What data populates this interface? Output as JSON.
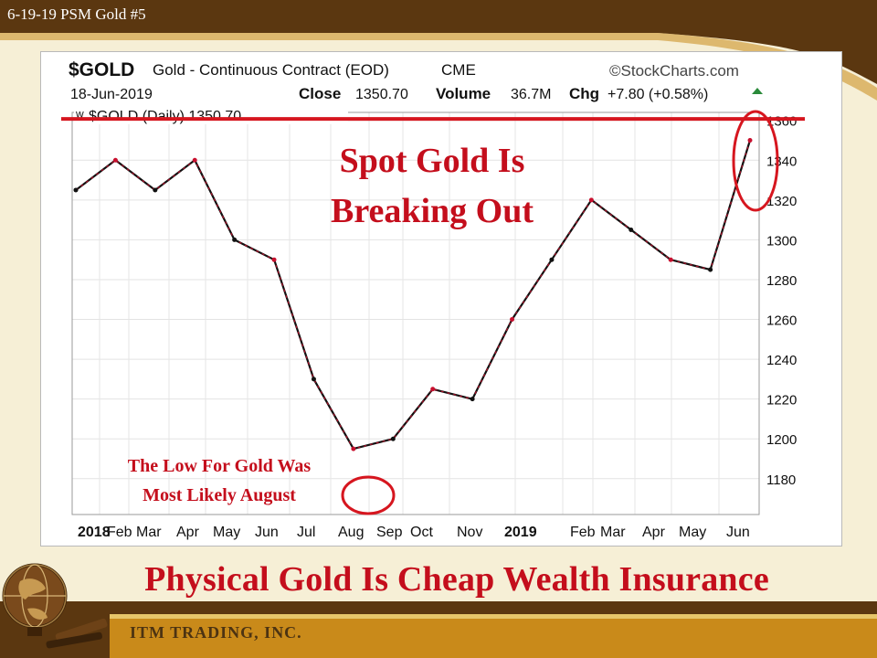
{
  "slide": {
    "tag": "6-19-19 PSM Gold #5",
    "headline": "Physical Gold Is Cheap Wealth Insurance",
    "company": "ITM TRADING, INC."
  },
  "colors": {
    "accent_red": "#d6161f",
    "candle_black": "#111111",
    "candle_red": "#c8102e",
    "banner_brown": "#5b3710",
    "banner_gold": "#c98a1a"
  },
  "icons": {
    "logo": "globe-compass-logo"
  },
  "chart_header": {
    "symbol": "$GOLD",
    "description": "Gold - Continuous Contract (EOD)",
    "exchange": "CME",
    "brand": "©StockCharts.com",
    "date": "18-Jun-2019",
    "close_label": "Close",
    "close_value": "1350.70",
    "volume_label": "Volume",
    "volume_value": "36.7M",
    "chg_label": "Chg",
    "chg_value": "+7.80 (+0.58%)",
    "legend": "$GOLD (Daily) 1350.70"
  },
  "annotations": {
    "breakout_line1": "Spot Gold Is",
    "breakout_line2": "Breaking Out",
    "low_line1": "The Low For Gold Was",
    "low_line2": "Most Likely August"
  },
  "chart_data": {
    "type": "line",
    "title": "Gold - Continuous Contract (EOD)",
    "xlabel": "",
    "ylabel": "",
    "x_ticks": [
      "2018",
      "Feb",
      "Mar",
      "Apr",
      "May",
      "Jun",
      "Jul",
      "Aug",
      "Sep",
      "Oct",
      "Nov",
      "2019",
      "Feb",
      "Mar",
      "Apr",
      "May",
      "Jun"
    ],
    "y_ticks": [
      1180,
      1200,
      1220,
      1240,
      1260,
      1280,
      1300,
      1320,
      1340,
      1360
    ],
    "ylim": [
      1162,
      1364
    ],
    "grid": true,
    "resistance_level": 1358,
    "series": [
      {
        "name": "$GOLD (Daily)",
        "x": [
          "2018-01",
          "2018-02",
          "2018-03",
          "2018-04",
          "2018-05",
          "2018-06",
          "2018-07",
          "2018-08",
          "2018-09",
          "2018-10",
          "2018-11",
          "2018-12",
          "2019-01",
          "2019-02",
          "2019-03",
          "2019-04",
          "2019-05",
          "2019-06"
        ],
        "values": [
          1325,
          1340,
          1325,
          1340,
          1300,
          1290,
          1230,
          1195,
          1200,
          1225,
          1220,
          1260,
          1290,
          1320,
          1305,
          1290,
          1285,
          1350
        ]
      }
    ]
  }
}
